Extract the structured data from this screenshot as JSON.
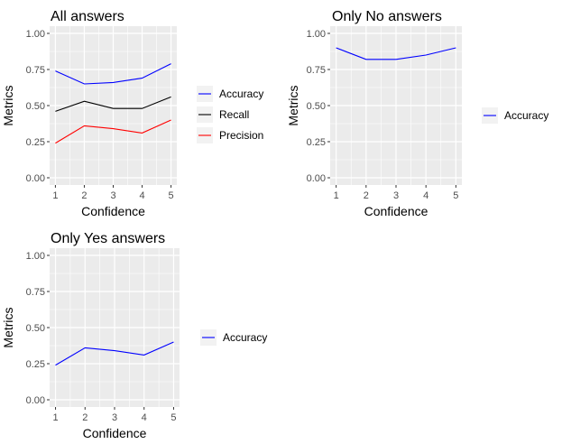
{
  "colors": {
    "panel_bg": "#ebebeb",
    "grid": "#ffffff",
    "legend_key_bg": "#f2f2f2"
  },
  "chart_data": [
    {
      "type": "line",
      "title": "All answers",
      "xlabel": "Confidence",
      "ylabel": "Metrics",
      "x": [
        1,
        2,
        3,
        4,
        5
      ],
      "x_ticks": [
        "1",
        "2",
        "3",
        "4",
        "5"
      ],
      "ylim": [
        0,
        1
      ],
      "y_ticks": [
        "0.00",
        "0.25",
        "0.50",
        "0.75",
        "1.00"
      ],
      "grid": true,
      "legend_position": "right",
      "series": [
        {
          "name": "Accuracy",
          "color": "#0000ff",
          "values": [
            0.74,
            0.65,
            0.66,
            0.69,
            0.79
          ]
        },
        {
          "name": "Recall",
          "color": "#000000",
          "values": [
            0.46,
            0.53,
            0.48,
            0.48,
            0.56
          ]
        },
        {
          "name": "Precision",
          "color": "#ff0000",
          "values": [
            0.24,
            0.36,
            0.34,
            0.31,
            0.4
          ]
        }
      ]
    },
    {
      "type": "line",
      "title": "Only No answers",
      "xlabel": "Confidence",
      "ylabel": "Metrics",
      "x": [
        1,
        2,
        3,
        4,
        5
      ],
      "x_ticks": [
        "1",
        "2",
        "3",
        "4",
        "5"
      ],
      "ylim": [
        0,
        1
      ],
      "y_ticks": [
        "0.00",
        "0.25",
        "0.50",
        "0.75",
        "1.00"
      ],
      "grid": true,
      "legend_position": "right",
      "series": [
        {
          "name": "Accuracy",
          "color": "#0000ff",
          "values": [
            0.9,
            0.82,
            0.82,
            0.85,
            0.9
          ]
        }
      ]
    },
    {
      "type": "line",
      "title": "Only Yes answers",
      "xlabel": "Confidence",
      "ylabel": "Metrics",
      "x": [
        1,
        2,
        3,
        4,
        5
      ],
      "x_ticks": [
        "1",
        "2",
        "3",
        "4",
        "5"
      ],
      "ylim": [
        0,
        1
      ],
      "y_ticks": [
        "0.00",
        "0.25",
        "0.50",
        "0.75",
        "1.00"
      ],
      "grid": true,
      "legend_position": "right",
      "series": [
        {
          "name": "Accuracy",
          "color": "#0000ff",
          "values": [
            0.24,
            0.36,
            0.34,
            0.31,
            0.4
          ]
        }
      ]
    }
  ]
}
